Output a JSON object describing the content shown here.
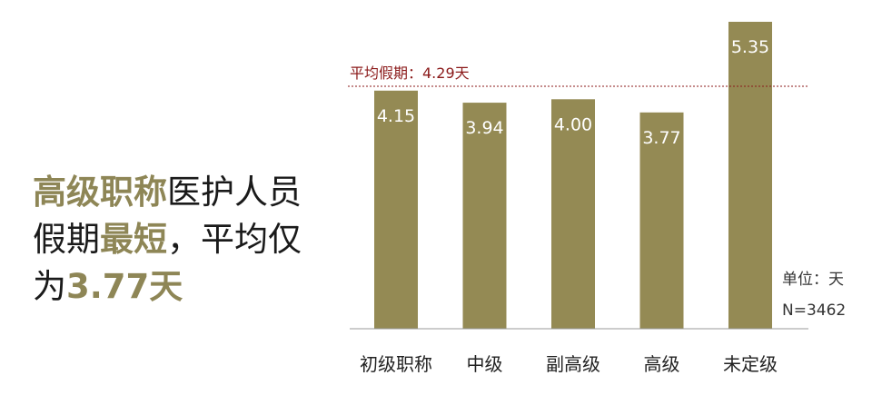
{
  "headline": {
    "line1_highlight": "高级职称",
    "line1_rest": "医护人员",
    "line2_start": "假期",
    "line2_highlight": "最短",
    "line2_rest": "，平均仅",
    "line3_start": "为",
    "line3_highlight": "3.77天"
  },
  "chart_data": {
    "type": "bar",
    "categories": [
      "初级职称",
      "中级",
      "副高级",
      "高级",
      "未定级"
    ],
    "values": [
      4.15,
      3.94,
      4.0,
      3.77,
      5.35
    ],
    "data_labels": [
      "4.15",
      "3.94",
      "4.00",
      "3.77",
      "5.35"
    ],
    "reference_line": {
      "value": 4.29,
      "label": "平均假期：4.29天",
      "color": "#8b1a1a",
      "style": "dashed"
    },
    "unit_label": "单位：天",
    "n_label": "N=3462",
    "bar_color": "#948a54",
    "highlight_color": "#8e8656",
    "title": "",
    "xlabel": "",
    "ylabel": "",
    "ylim": [
      0,
      5.35
    ],
    "grid": false
  }
}
